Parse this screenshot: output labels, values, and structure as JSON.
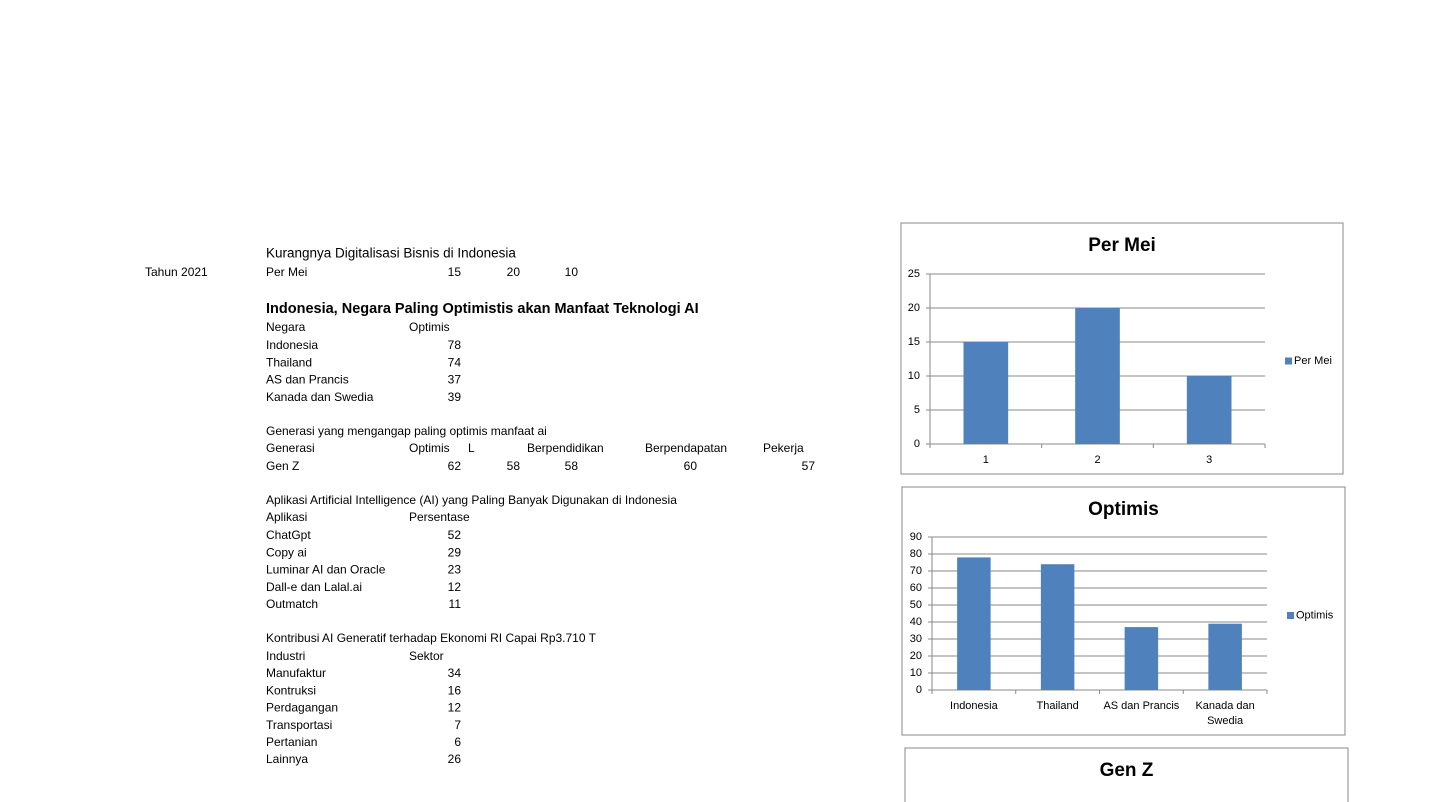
{
  "sheet": {
    "year_label": "Tahun 2021",
    "section1": {
      "title": "Kurangnya Digitalisasi Bisnis di Indonesia",
      "row": [
        "Per Mei",
        15,
        20,
        10
      ]
    },
    "section2": {
      "title": "Indonesia, Negara Paling Optimistis akan Manfaat Teknologi AI",
      "header": [
        "Negara",
        "Optimis"
      ],
      "rows": [
        [
          "Indonesia",
          78
        ],
        [
          "Thailand",
          74
        ],
        [
          "AS dan Prancis",
          37
        ],
        [
          "Kanada dan Swedia",
          39
        ]
      ]
    },
    "section3": {
      "title": "Generasi yang mengangap paling optimis manfaat ai",
      "header": [
        "Generasi",
        "Optimis",
        "L",
        "Berpendidikan",
        "Berpendapatan",
        "Pekerja"
      ],
      "rows": [
        [
          "Gen Z",
          62,
          58,
          58,
          60,
          57
        ]
      ]
    },
    "section4": {
      "title": "Aplikasi Artificial Intelligence (AI) yang Paling Banyak Digunakan di Indonesia",
      "header": [
        "Aplikasi",
        "Persentase"
      ],
      "rows": [
        [
          "ChatGpt",
          52
        ],
        [
          "Copy ai",
          29
        ],
        [
          "Luminar AI dan Oracle",
          23
        ],
        [
          "Dall-e dan Lalal.ai",
          12
        ],
        [
          "Outmatch",
          11
        ]
      ]
    },
    "section5": {
      "title": "Kontribusi AI Generatif terhadap Ekonomi RI Capai Rp3.710 T",
      "header": [
        "Industri",
        "Sektor"
      ],
      "rows": [
        [
          "Manufaktur",
          34
        ],
        [
          "Kontruksi",
          16
        ],
        [
          "Perdagangan",
          12
        ],
        [
          "Transportasi",
          7
        ],
        [
          "Pertanian",
          6
        ],
        [
          "Lainnya",
          26
        ]
      ]
    }
  },
  "chart_data": [
    {
      "type": "bar",
      "title": "Per Mei",
      "categories": [
        "1",
        "2",
        "3"
      ],
      "series": [
        {
          "name": "Per Mei",
          "color": "#4f81bd",
          "values": [
            15,
            20,
            10
          ]
        }
      ],
      "ylim": [
        0,
        25
      ],
      "yticks": [
        0,
        5,
        10,
        15,
        20,
        25
      ],
      "grid": true,
      "legend": "right"
    },
    {
      "type": "bar",
      "title": "Optimis",
      "categories": [
        "Indonesia",
        "Thailand",
        "AS dan Prancis",
        "Kanada dan Swedia"
      ],
      "series": [
        {
          "name": "Optimis",
          "color": "#4f81bd",
          "values": [
            78,
            74,
            37,
            39
          ]
        }
      ],
      "ylim": [
        0,
        90
      ],
      "yticks": [
        0,
        10,
        20,
        30,
        40,
        50,
        60,
        70,
        80,
        90
      ],
      "grid": true,
      "legend": "right"
    },
    {
      "type": "bar",
      "title": "Gen Z"
    }
  ]
}
